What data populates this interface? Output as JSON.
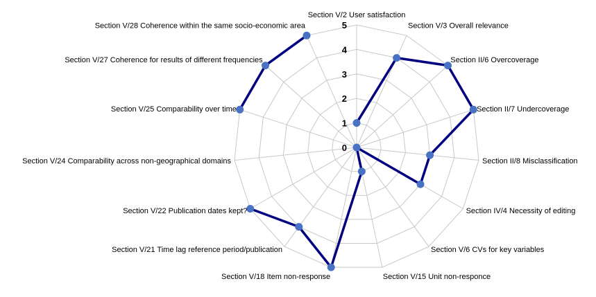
{
  "chart_data": {
    "type": "radar",
    "title": "",
    "axes": [
      "Section V/2 User satisfaction",
      "Section V/3 Overall relevance",
      "Section II/6 Overcoverage",
      "Section II/7 Undercoverage",
      "Section II/8 Misclassification",
      "Section IV/4 Necessity of editing",
      "Section V/6 CVs for key variables",
      "Section V/15 Unit non-responce",
      "Section V/18 Item non-response",
      "Section V/21 Time lag reference period/publication",
      "Section V/22 Publication dates kept?",
      "Section V/24 Comparability across non-geographical domains",
      "Section V/25 Comparability over time",
      "Section V/27 Coherence for results of different frequencies",
      "Section V/28 Coherence within the same socio-economic area"
    ],
    "ticks": [
      "0",
      "1",
      "2",
      "3",
      "4",
      "5"
    ],
    "rlim": [
      0,
      5
    ],
    "grid": true,
    "legend": "none",
    "series": [
      {
        "values": [
          1,
          4,
          5,
          5,
          3,
          3,
          0,
          1,
          5,
          4,
          5,
          null,
          5,
          5,
          5
        ],
        "line_color": "#000080",
        "marker_color": "#4a72c4"
      }
    ]
  }
}
